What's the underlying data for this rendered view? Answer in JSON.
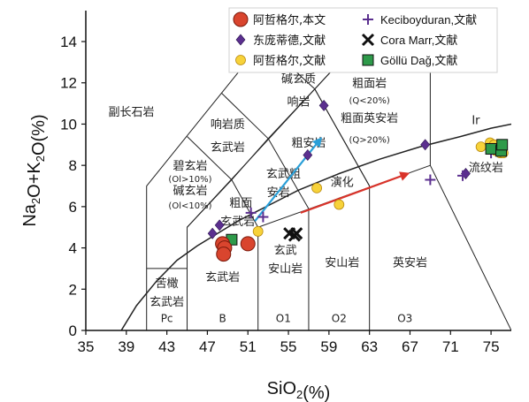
{
  "chart_data": {
    "type": "scatter",
    "title": "",
    "xlabel_parts": [
      "SiO",
      "2",
      "(%)"
    ],
    "ylabel_parts": [
      "Na",
      "2",
      "O+K",
      "2",
      "O(%)"
    ],
    "xlim": [
      35,
      77
    ],
    "ylim": [
      0,
      15.5
    ],
    "xticks": [
      35,
      39,
      43,
      47,
      51,
      55,
      59,
      63,
      67,
      71,
      75
    ],
    "yticks": [
      0,
      2,
      4,
      6,
      8,
      10,
      12,
      14
    ],
    "grid": false,
    "legend_placement": "top-right",
    "colors": {
      "red_circle": "#d9452e",
      "purple": "#5b2f8f",
      "yellow": "#f7d23a",
      "green": "#2e9a4a",
      "black": "#111111",
      "arrow_blue": "#2a9fd8",
      "arrow_red": "#d9332a"
    },
    "legend": [
      {
        "label": "阿哲格尔,本文",
        "marker": "circle-red"
      },
      {
        "label": "Keciboyduran,文献",
        "marker": "plus"
      },
      {
        "label": "东庞蒂德,文献",
        "marker": "diamond"
      },
      {
        "label": "Cora Marr,文献",
        "marker": "x"
      },
      {
        "label": "阿哲格尔,文献",
        "marker": "circle-yellow"
      },
      {
        "label": "Göllü Dağ,文献",
        "marker": "square"
      }
    ],
    "fields": [
      {
        "label": "副长石岩",
        "x": 39.5,
        "y": 10.4,
        "size": 13
      },
      {
        "label": "碱玄质",
        "x": 56.0,
        "y": 12.0,
        "size": 13
      },
      {
        "label": "响岩",
        "x": 56.0,
        "y": 10.9,
        "size": 13
      },
      {
        "label": "响岩质",
        "x": 49.0,
        "y": 9.8,
        "size": 13
      },
      {
        "label": "玄武岩",
        "x": 49.0,
        "y": 8.7,
        "size": 13
      },
      {
        "label": "粗面岩",
        "x": 63.0,
        "y": 11.8,
        "size": 13
      },
      {
        "label": "(Q<20%)",
        "x": 63.0,
        "y": 11.0,
        "size": 10
      },
      {
        "label": "粗面英安岩",
        "x": 63.0,
        "y": 10.1,
        "size": 13
      },
      {
        "label": "(Q>20%)",
        "x": 63.0,
        "y": 9.1,
        "size": 10
      },
      {
        "label": "粗安岩",
        "x": 57.0,
        "y": 8.9,
        "size": 13
      },
      {
        "label": "碧玄岩",
        "x": 45.3,
        "y": 7.8,
        "size": 13
      },
      {
        "label": "(Ol>10%)",
        "x": 45.3,
        "y": 7.2,
        "size": 10
      },
      {
        "label": "碱玄岩",
        "x": 45.3,
        "y": 6.6,
        "size": 13
      },
      {
        "label": "(Ol<10%)",
        "x": 45.3,
        "y": 5.9,
        "size": 10
      },
      {
        "label": "玄武粗",
        "x": 54.5,
        "y": 7.4,
        "size": 13
      },
      {
        "label": "安岩",
        "x": 54.0,
        "y": 6.5,
        "size": 13
      },
      {
        "label": "粗面",
        "x": 50.3,
        "y": 6.0,
        "size": 13
      },
      {
        "label": "玄武岩",
        "x": 50.0,
        "y": 5.1,
        "size": 13
      },
      {
        "label": "玄武",
        "x": 54.7,
        "y": 3.7,
        "size": 13
      },
      {
        "label": "安山岩",
        "x": 54.7,
        "y": 2.8,
        "size": 13
      },
      {
        "label": "玄武岩",
        "x": 48.5,
        "y": 2.4,
        "size": 13
      },
      {
        "label": "安山岩",
        "x": 60.3,
        "y": 3.1,
        "size": 13
      },
      {
        "label": "英安岩",
        "x": 67.0,
        "y": 3.1,
        "size": 13
      },
      {
        "label": "流纹岩",
        "x": 74.5,
        "y": 7.7,
        "size": 13
      },
      {
        "label": "苦橄",
        "x": 43.0,
        "y": 2.1,
        "size": 13
      },
      {
        "label": "玄武岩",
        "x": 43.0,
        "y": 1.2,
        "size": 13
      },
      {
        "label": "Pc",
        "x": 43.0,
        "y": 0.4,
        "size": 12
      },
      {
        "label": "B",
        "x": 48.5,
        "y": 0.4,
        "size": 12
      },
      {
        "label": "O1",
        "x": 54.5,
        "y": 0.4,
        "size": 12
      },
      {
        "label": "O2",
        "x": 60.0,
        "y": 0.4,
        "size": 12
      },
      {
        "label": "O3",
        "x": 66.5,
        "y": 0.4,
        "size": 12
      },
      {
        "label": "演化",
        "x": 60.3,
        "y": 7.0,
        "size": 13
      },
      {
        "label": "Ir",
        "x": 73.5,
        "y": 10.0,
        "size": 13
      }
    ],
    "series": [
      {
        "marker": "circle-red",
        "points": [
          [
            48.5,
            4.2
          ],
          [
            48.7,
            4.0
          ],
          [
            48.6,
            3.7
          ],
          [
            51.0,
            4.2
          ]
        ]
      },
      {
        "marker": "circle-yellow",
        "points": [
          [
            52.0,
            4.8
          ],
          [
            57.8,
            6.9
          ],
          [
            60.0,
            6.1
          ],
          [
            74.0,
            8.9
          ],
          [
            74.9,
            9.1
          ],
          [
            75.3,
            9.0
          ],
          [
            75.9,
            8.6
          ],
          [
            76.2,
            8.6
          ],
          [
            75.5,
            8.7
          ]
        ]
      },
      {
        "marker": "diamond",
        "points": [
          [
            47.5,
            4.7
          ],
          [
            48.2,
            5.1
          ],
          [
            56.9,
            8.5
          ],
          [
            58.5,
            10.9
          ],
          [
            68.5,
            9.0
          ],
          [
            72.5,
            7.6
          ]
        ]
      },
      {
        "marker": "plus",
        "points": [
          [
            49.0,
            4.3
          ],
          [
            51.3,
            5.7
          ],
          [
            52.5,
            5.5
          ],
          [
            69.0,
            7.3
          ],
          [
            72.2,
            7.5
          ],
          [
            75.0,
            8.6
          ]
        ]
      },
      {
        "marker": "x",
        "points": [
          [
            55.1,
            4.7
          ],
          [
            55.6,
            4.6
          ],
          [
            55.8,
            4.7
          ]
        ]
      },
      {
        "marker": "square",
        "points": [
          [
            49.4,
            4.4
          ],
          [
            75.0,
            8.8
          ],
          [
            76.0,
            8.7
          ],
          [
            76.1,
            9.0
          ]
        ]
      }
    ],
    "arrows": [
      {
        "color": "arrow_blue",
        "from": [
          51.7,
          5.3
        ],
        "to": [
          58.2,
          9.3
        ]
      },
      {
        "color": "arrow_red",
        "from": [
          56.2,
          5.7
        ],
        "to": [
          66.8,
          7.6
        ]
      }
    ]
  }
}
